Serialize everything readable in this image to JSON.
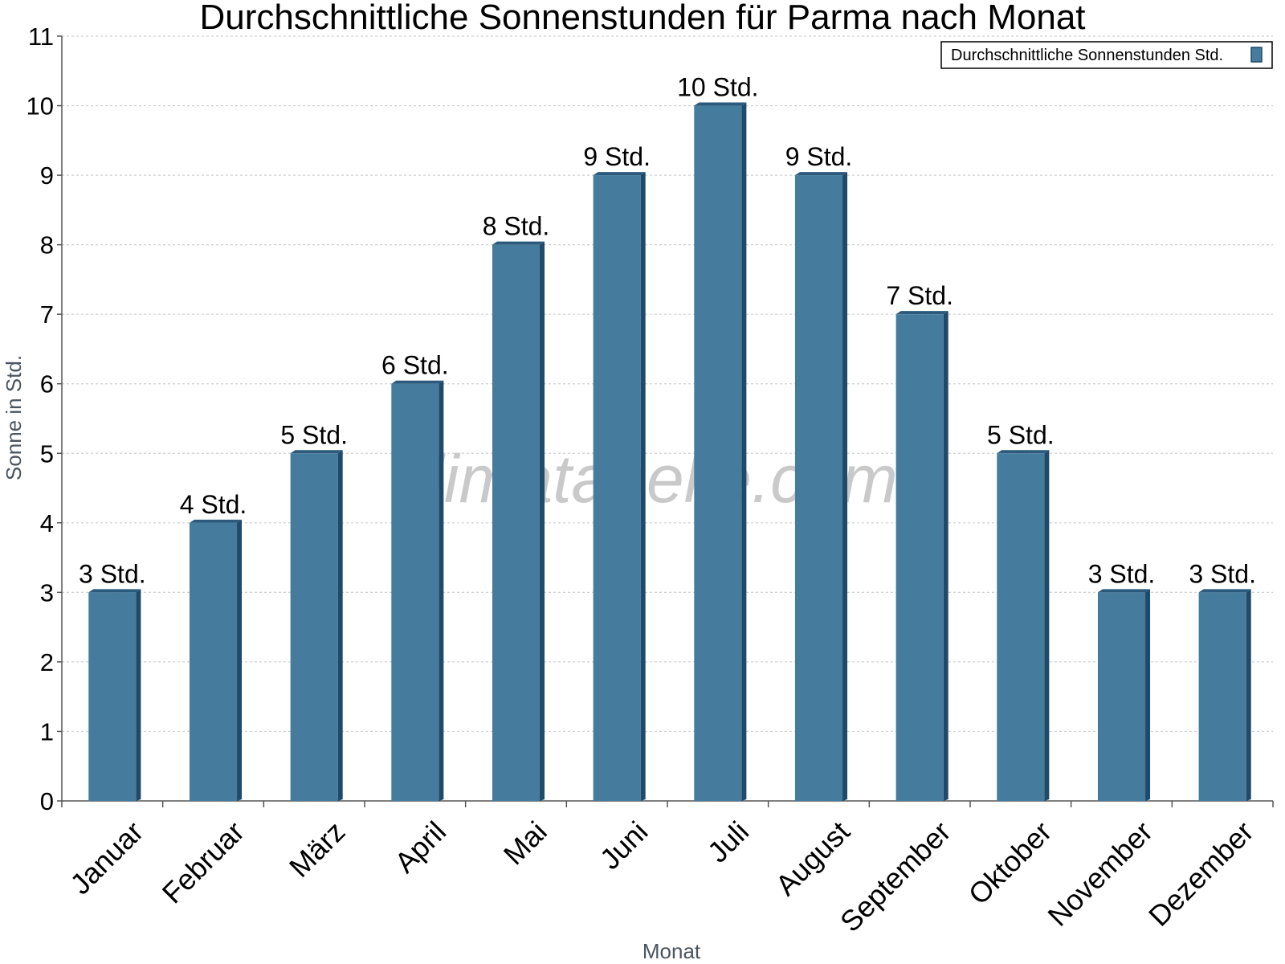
{
  "chart_data": {
    "type": "bar",
    "title": "Durchschnittliche Sonnenstunden für Parma nach Monat",
    "xlabel": "Monat",
    "ylabel": "Sonne in Std.",
    "categories": [
      "Januar",
      "Februar",
      "März",
      "April",
      "Mai",
      "Juni",
      "Juli",
      "August",
      "September",
      "Oktober",
      "November",
      "Dezember"
    ],
    "series": [
      {
        "name": "Durchschnittliche Sonnenstunden Std.",
        "values": [
          3,
          4,
          5,
          6,
          8,
          9,
          10,
          9,
          7,
          5,
          3,
          3
        ],
        "labels": [
          "3 Std.",
          "4 Std.",
          "5 Std.",
          "6 Std.",
          "8 Std.",
          "9 Std.",
          "10 Std.",
          "9 Std.",
          "7 Std.",
          "5 Std.",
          "3 Std.",
          "3 Std."
        ],
        "color": "#457b9d"
      }
    ],
    "ylim": [
      0,
      11
    ],
    "yticks": [
      "0",
      "1",
      "2",
      "3",
      "4",
      "5",
      "6",
      "7",
      "8",
      "9",
      "10",
      "11"
    ],
    "grid": true,
    "legend_position": "top-right",
    "watermark": "klimatabelle.com"
  },
  "colors": {
    "bar": "#457b9d",
    "bar_side": "#1f4a6a",
    "bar_top": "#2b5a7c",
    "grid": "#cfcfcf",
    "axis": "#555555"
  }
}
